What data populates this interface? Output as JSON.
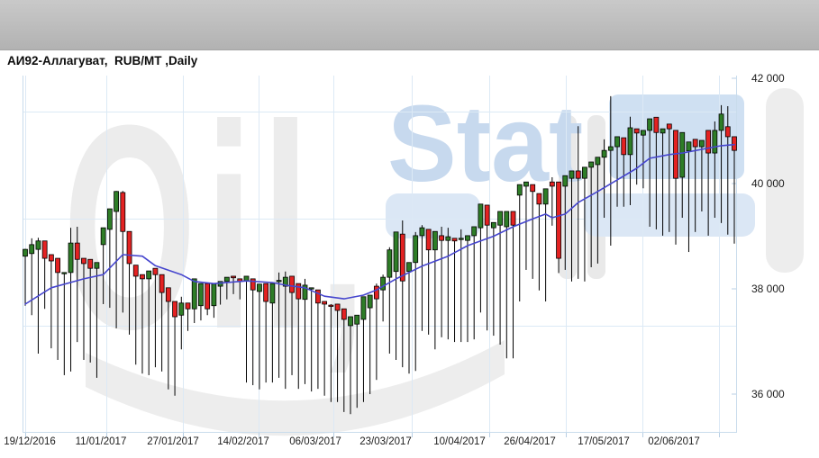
{
  "header": {
    "title": "АИ92-Аллагуват,  RUB/MT ,Daily"
  },
  "watermark": {
    "gray_text": "Oil,",
    "blue_text": "Stat",
    "gray_color": "#ececec",
    "blue_color": "#c7d9ee",
    "box_color": "#cfe0f2",
    "box2_color": "#dbe7f5"
  },
  "chart_data": {
    "type": "candlestick",
    "title": "АИ92-Аллагуват",
    "unit": "RUB/MT",
    "timeframe": "Daily",
    "legend_position": "none",
    "grid": true,
    "colors": {
      "up": "#2e7d27",
      "down": "#e32222",
      "wick": "#000000",
      "ma_line": "#4646ce",
      "grid_line": "#dce9f5",
      "axis_line": "#c9dcec",
      "tick": "#b8cfe4"
    },
    "y_axis": {
      "side": "right",
      "tick_labels": [
        "42 000",
        "40 000",
        "38 000",
        "36 000"
      ],
      "tick_values": [
        42000,
        40000,
        38000,
        36000
      ],
      "min": 35500,
      "max": 42050
    },
    "x_axis": {
      "tick_labels": [
        "19/12/2016",
        "11/01/2017",
        "27/01/2017",
        "14/02/2017",
        "06/03/2017",
        "23/03/2017",
        "10/04/2017",
        "26/04/2017",
        "17/05/2017",
        "02/06/2017"
      ]
    },
    "candles_format": [
      "open",
      "high",
      "low",
      "close"
    ],
    "candles": [
      [
        38620,
        38760,
        37680,
        38750
      ],
      [
        38670,
        38960,
        37500,
        38840
      ],
      [
        38750,
        38970,
        36770,
        38910
      ],
      [
        38910,
        38910,
        37620,
        38580
      ],
      [
        38650,
        38650,
        36870,
        38530
      ],
      [
        38580,
        38580,
        36650,
        38310
      ],
      [
        38310,
        38310,
        36360,
        38310
      ],
      [
        38310,
        39160,
        36430,
        38870
      ],
      [
        38870,
        39180,
        36990,
        38560
      ],
      [
        38580,
        38580,
        36650,
        38480
      ],
      [
        38560,
        38560,
        36600,
        38390
      ],
      [
        38390,
        38500,
        36310,
        38500
      ],
      [
        38840,
        39160,
        37710,
        39160
      ],
      [
        39130,
        39520,
        37640,
        39520
      ],
      [
        39470,
        39860,
        37250,
        39850
      ],
      [
        39830,
        39860,
        37550,
        39090
      ],
      [
        39090,
        39090,
        37130,
        38480
      ],
      [
        38450,
        38450,
        36560,
        38240
      ],
      [
        38270,
        38270,
        36390,
        38190
      ],
      [
        38190,
        38340,
        36360,
        38340
      ],
      [
        38390,
        38390,
        36510,
        38270
      ],
      [
        38270,
        38270,
        36430,
        37930
      ],
      [
        38020,
        38020,
        36090,
        37760
      ],
      [
        37760,
        37760,
        35970,
        37470
      ],
      [
        37500,
        37850,
        36850,
        37730
      ],
      [
        37730,
        37730,
        37200,
        37620
      ],
      [
        37620,
        38190,
        37350,
        38190
      ],
      [
        37680,
        38100,
        37400,
        38100
      ],
      [
        38100,
        38100,
        37500,
        37620
      ],
      [
        37680,
        38090,
        37450,
        38090
      ],
      [
        38050,
        38140,
        37700,
        38140
      ],
      [
        38140,
        38220,
        37800,
        38220
      ],
      [
        38240,
        38240,
        37900,
        38210
      ],
      [
        38190,
        38190,
        37800,
        38140
      ],
      [
        38150,
        38240,
        36220,
        38240
      ],
      [
        38190,
        38190,
        36170,
        37980
      ],
      [
        37950,
        38090,
        36090,
        38090
      ],
      [
        38100,
        38100,
        36220,
        37760
      ],
      [
        37730,
        38100,
        36220,
        38100
      ],
      [
        38150,
        38310,
        36310,
        38160
      ],
      [
        38050,
        38330,
        36100,
        38220
      ],
      [
        38240,
        38240,
        36360,
        37930
      ],
      [
        38100,
        38100,
        36100,
        37810
      ],
      [
        37800,
        38190,
        36190,
        38070
      ],
      [
        38020,
        38020,
        36050,
        38020
      ],
      [
        37980,
        37980,
        36100,
        37730
      ],
      [
        37760,
        37760,
        35970,
        37710
      ],
      [
        37690,
        37710,
        35850,
        37670
      ],
      [
        37710,
        37710,
        35850,
        37590
      ],
      [
        37620,
        37620,
        35660,
        37420
      ],
      [
        37300,
        37470,
        35620,
        37470
      ],
      [
        37330,
        37500,
        35740,
        37500
      ],
      [
        37420,
        37850,
        35850,
        37850
      ],
      [
        37640,
        37880,
        36000,
        37880
      ],
      [
        38050,
        38100,
        36270,
        37810
      ],
      [
        37980,
        38270,
        37380,
        38220
      ],
      [
        38220,
        38790,
        36770,
        38740
      ],
      [
        38330,
        39080,
        36650,
        39080
      ],
      [
        39040,
        39300,
        36510,
        38150
      ],
      [
        38330,
        38500,
        36390,
        38500
      ],
      [
        38500,
        39080,
        36440,
        39010
      ],
      [
        39010,
        39210,
        37200,
        39160
      ],
      [
        39130,
        39130,
        37130,
        38740
      ],
      [
        38740,
        39090,
        36850,
        39090
      ],
      [
        39010,
        39180,
        37080,
        38920
      ],
      [
        38920,
        39160,
        37040,
        38990
      ],
      [
        38960,
        38960,
        36990,
        38910
      ],
      [
        38950,
        39130,
        36990,
        38960
      ],
      [
        38920,
        39010,
        36990,
        39010
      ],
      [
        39010,
        39180,
        37040,
        39180
      ],
      [
        39160,
        39610,
        37550,
        39610
      ],
      [
        39590,
        39590,
        37210,
        39210
      ],
      [
        39160,
        39260,
        37110,
        39260
      ],
      [
        39210,
        39470,
        36940,
        39470
      ],
      [
        39180,
        39470,
        36680,
        39470
      ],
      [
        39470,
        39470,
        36680,
        39210
      ],
      [
        39780,
        39980,
        37760,
        39980
      ],
      [
        39950,
        40030,
        38360,
        40030
      ],
      [
        39980,
        39980,
        38190,
        39850
      ],
      [
        39810,
        39810,
        37970,
        39610
      ],
      [
        39610,
        39900,
        37760,
        39900
      ],
      [
        40030,
        40120,
        39200,
        39950
      ],
      [
        40030,
        40030,
        38300,
        38580
      ],
      [
        39950,
        40150,
        38360,
        40150
      ],
      [
        40100,
        40240,
        38140,
        40240
      ],
      [
        40240,
        41090,
        38190,
        40100
      ],
      [
        40100,
        40310,
        38140,
        40310
      ],
      [
        40310,
        40410,
        38410,
        40410
      ],
      [
        40360,
        40500,
        38480,
        40500
      ],
      [
        40500,
        40840,
        39350,
        40630
      ],
      [
        40630,
        41660,
        38820,
        40700
      ],
      [
        40700,
        40890,
        39560,
        40890
      ],
      [
        40870,
        40870,
        39560,
        40550
      ],
      [
        40550,
        41270,
        39590,
        41060
      ],
      [
        41040,
        41040,
        39980,
        40960
      ],
      [
        40920,
        41010,
        39910,
        41010
      ],
      [
        41010,
        41230,
        39180,
        41230
      ],
      [
        41260,
        41260,
        39130,
        40970
      ],
      [
        40960,
        41040,
        39010,
        41040
      ],
      [
        41130,
        41130,
        39080,
        41040
      ],
      [
        41010,
        41010,
        38840,
        40100
      ],
      [
        40120,
        40970,
        39350,
        40970
      ],
      [
        40620,
        40790,
        38700,
        40790
      ],
      [
        40840,
        40840,
        39080,
        40700
      ],
      [
        40700,
        40820,
        39470,
        40820
      ],
      [
        41010,
        41010,
        39010,
        40580
      ],
      [
        40580,
        41180,
        39350,
        41010
      ],
      [
        41010,
        41490,
        39250,
        41320
      ],
      [
        41080,
        41470,
        39030,
        40890
      ],
      [
        40890,
        40890,
        38860,
        40630
      ]
    ],
    "ma_points": [
      [
        0,
        37710
      ],
      [
        4,
        38020
      ],
      [
        9,
        38190
      ],
      [
        12,
        38270
      ],
      [
        15,
        38650
      ],
      [
        18,
        38620
      ],
      [
        20,
        38440
      ],
      [
        24,
        38270
      ],
      [
        26,
        38140
      ],
      [
        29,
        38100
      ],
      [
        34,
        38150
      ],
      [
        38,
        38120
      ],
      [
        40,
        38070
      ],
      [
        43,
        38020
      ],
      [
        46,
        37860
      ],
      [
        49,
        37810
      ],
      [
        52,
        37880
      ],
      [
        54,
        37980
      ],
      [
        57,
        38190
      ],
      [
        61,
        38430
      ],
      [
        65,
        38620
      ],
      [
        68,
        38820
      ],
      [
        72,
        39000
      ],
      [
        75,
        39180
      ],
      [
        78,
        39330
      ],
      [
        80,
        39420
      ],
      [
        81,
        39350
      ],
      [
        83,
        39420
      ],
      [
        85,
        39640
      ],
      [
        88,
        39850
      ],
      [
        91,
        40070
      ],
      [
        94,
        40290
      ],
      [
        96,
        40480
      ],
      [
        99,
        40550
      ],
      [
        101,
        40580
      ],
      [
        104,
        40650
      ],
      [
        107,
        40720
      ],
      [
        109,
        40740
      ]
    ]
  }
}
